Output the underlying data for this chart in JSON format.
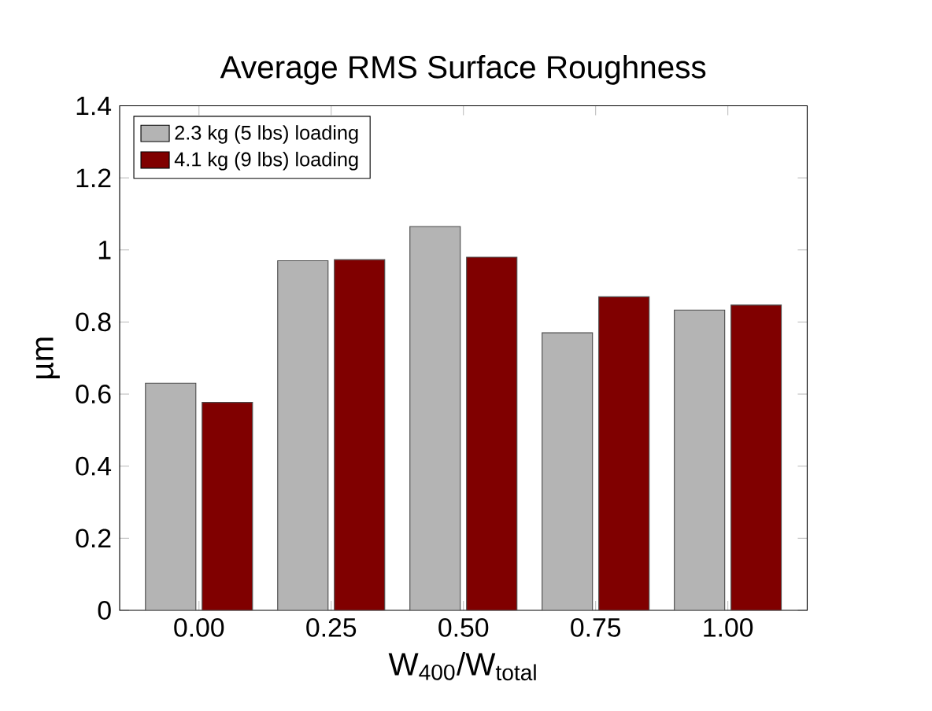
{
  "chart_data": {
    "type": "bar",
    "title": "Average RMS Surface Roughness",
    "xlabel": "W$_{400}$/W$_{total}$",
    "ylabel": "µm",
    "categories": [
      "0.00",
      "0.25",
      "0.50",
      "0.75",
      "1.00"
    ],
    "series": [
      {
        "name": "2.3 kg (5 lbs) loading",
        "color": "#b4b4b4",
        "values": [
          0.63,
          0.97,
          1.065,
          0.77,
          0.833
        ]
      },
      {
        "name": "4.1 kg (9 lbs) loading",
        "color": "#800000",
        "values": [
          0.577,
          0.973,
          0.98,
          0.87,
          0.847
        ]
      }
    ],
    "ylim": [
      0,
      1.4
    ],
    "yticks": [
      0,
      0.2,
      0.4,
      0.6,
      0.8,
      1,
      1.2,
      1.4
    ],
    "grid": false,
    "legend": "top left"
  }
}
